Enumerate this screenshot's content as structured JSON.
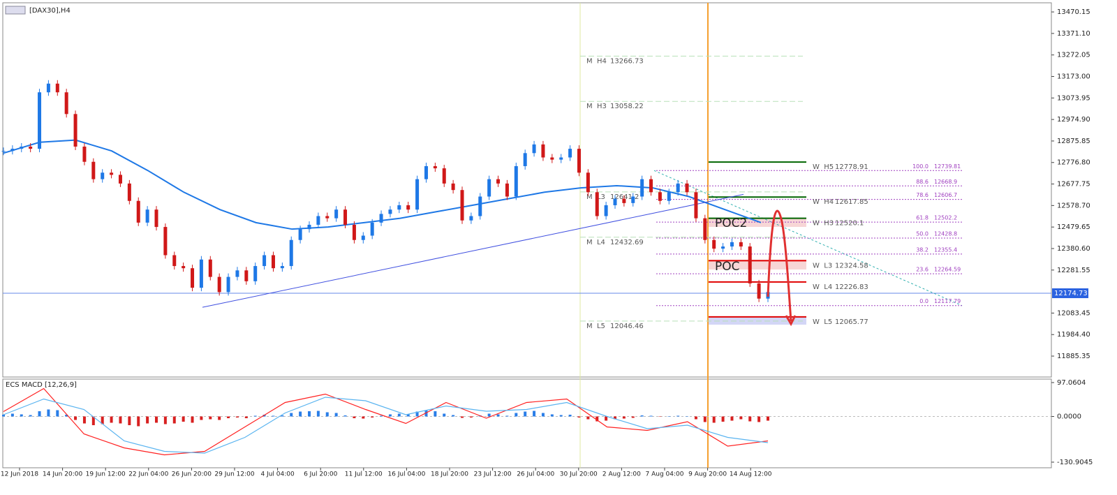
{
  "chart_data": {
    "type": "candlestick",
    "title": "[DAX30],H4",
    "ylim": [
      11789,
      13509
    ],
    "yticks": [
      13470.15,
      {
        "value": 13371.1,
        "label": "13371.10"
      },
      13272.05,
      {
        "value": 13173,
        "label": "13173.00"
      },
      13073.95,
      {
        "value": 12974.9,
        "label": "12974.90"
      },
      12875.85,
      {
        "value": 12776.8,
        "label": "12776.80"
      },
      12677.75,
      {
        "value": 12578.7,
        "label": "12578.70"
      },
      12479.65,
      {
        "value": 12380.6,
        "label": "12380.60"
      },
      12281.55,
      12083.45,
      {
        "value": 11984.4,
        "label": "11984.40"
      },
      11885.35
    ],
    "current_price": 12174.73,
    "x_labels": [
      "12 Jun 2018",
      "14 Jun 20:00",
      "19 Jun 12:00",
      "22 Jun 04:00",
      "26 Jun 20:00",
      "29 Jun 12:00",
      "4 Jul 04:00",
      "6 Jul 20:00",
      "11 Jul 12:00",
      "16 Jul 04:00",
      "18 Jul 20:00",
      "23 Jul 12:00",
      "26 Jul 04:00",
      "30 Jul 20:00",
      "2 Aug 12:00",
      "7 Aug 04:00",
      "9 Aug 20:00",
      "14 Aug 12:00"
    ],
    "closes": [
      12830,
      12840,
      12850,
      12840,
      13100,
      13140,
      13100,
      13000,
      12850,
      12780,
      12700,
      12730,
      12720,
      12680,
      12600,
      12500,
      12560,
      12480,
      12350,
      12300,
      12290,
      12200,
      12330,
      12250,
      12180,
      12250,
      12280,
      12230,
      12300,
      12350,
      12290,
      12300,
      12420,
      12470,
      12490,
      12530,
      12520,
      12560,
      12490,
      12420,
      12440,
      12500,
      12540,
      12560,
      12580,
      12560,
      12700,
      12760,
      12750,
      12680,
      12650,
      12510,
      12530,
      12620,
      12700,
      12680,
      12620,
      12760,
      12820,
      12860,
      12800,
      12790,
      12800,
      12840,
      12730,
      12640,
      12530,
      12580,
      12610,
      12590,
      12620,
      12700,
      12640,
      12600,
      12640,
      12680,
      12640,
      12520,
      12420,
      12380,
      12390,
      12410,
      12390,
      12220,
      12150,
      12180
    ],
    "moving_average": {
      "color": "#1e78e6",
      "values": [
        12820,
        12870,
        12880,
        12830,
        12740,
        12640,
        12560,
        12500,
        12470,
        12480,
        12500,
        12520,
        12550,
        12580,
        12610,
        12640,
        12660,
        12670,
        12660,
        12620,
        12560,
        12500
      ]
    },
    "trendline": [
      12110,
      12630
    ],
    "monthly_pivots": [
      {
        "name": "M  H4",
        "value": 13266.73
      },
      {
        "name": "M  H3",
        "value": 13058.22
      },
      {
        "name": "M  L3",
        "value": 12641.2
      },
      {
        "name": "M  L4",
        "value": 12432.69
      },
      {
        "name": "M  L5",
        "value": 12046.46
      }
    ],
    "weekly_pivots": [
      {
        "name": "W  H5",
        "value": 12778.91,
        "color": "#006400"
      },
      {
        "name": "W  H4",
        "value": 12617.85,
        "color": "#006400"
      },
      {
        "name": "W  H3",
        "value": 12520.1,
        "color": "#006400"
      },
      {
        "name": "W  L3",
        "value": 12324.58,
        "color": "#e00000"
      },
      {
        "name": "W  L4",
        "value": 12226.83,
        "color": "#e00000"
      },
      {
        "name": "W  L5",
        "value": 12065.77,
        "color": "#e00000"
      }
    ],
    "fibonacci": [
      {
        "level": "100.0",
        "value": 12739.81
      },
      {
        "level": "88.6",
        "value": 12668.9
      },
      {
        "level": "78.6",
        "value": 12606.7
      },
      {
        "level": "61.8",
        "value": 12502.2
      },
      {
        "level": "50.0",
        "value": 12428.8
      },
      {
        "level": "38.2",
        "value": 12355.4
      },
      {
        "level": "23.6",
        "value": 12264.59
      },
      {
        "level": "0.0",
        "value": 12117.79
      }
    ],
    "annotations": [
      "POC2",
      "POC"
    ],
    "macd": {
      "title": "ECS MACD [12,26,9]",
      "ylim": [
        -147,
        107
      ],
      "yticks": [
        97.0604,
        {
          "value": 0,
          "label": "0.0000"
        },
        -130.9045
      ],
      "histogram": [
        5,
        8,
        6,
        4,
        15,
        20,
        18,
        5,
        -10,
        -20,
        -25,
        -22,
        -18,
        -20,
        -25,
        -28,
        -20,
        -18,
        -22,
        -20,
        -15,
        -18,
        -10,
        -8,
        -10,
        -5,
        -3,
        -5,
        2,
        5,
        2,
        3,
        10,
        14,
        15,
        16,
        12,
        10,
        3,
        -5,
        -6,
        -3,
        2,
        6,
        8,
        6,
        14,
        18,
        15,
        8,
        4,
        -4,
        -3,
        3,
        8,
        6,
        2,
        10,
        14,
        16,
        10,
        6,
        4,
        5,
        -3,
        -8,
        -14,
        -12,
        -8,
        -6,
        -4,
        3,
        2,
        -1,
        0,
        2,
        1,
        -8,
        -16,
        -18,
        -15,
        -12,
        -8,
        -14,
        -16,
        -12
      ],
      "series": [
        {
          "color": "#ff2020",
          "values": [
            14,
            80,
            -50,
            -90,
            -110,
            -100,
            -30,
            40,
            64,
            20,
            -20,
            40,
            -5,
            40,
            50,
            -30,
            -40,
            -15,
            -85,
            -70
          ]
        },
        {
          "color": "#5ab4f0",
          "values": [
            5,
            50,
            20,
            -70,
            -100,
            -105,
            -60,
            10,
            55,
            45,
            5,
            30,
            15,
            20,
            40,
            0,
            -35,
            -25,
            -60,
            -75
          ]
        }
      ]
    }
  }
}
